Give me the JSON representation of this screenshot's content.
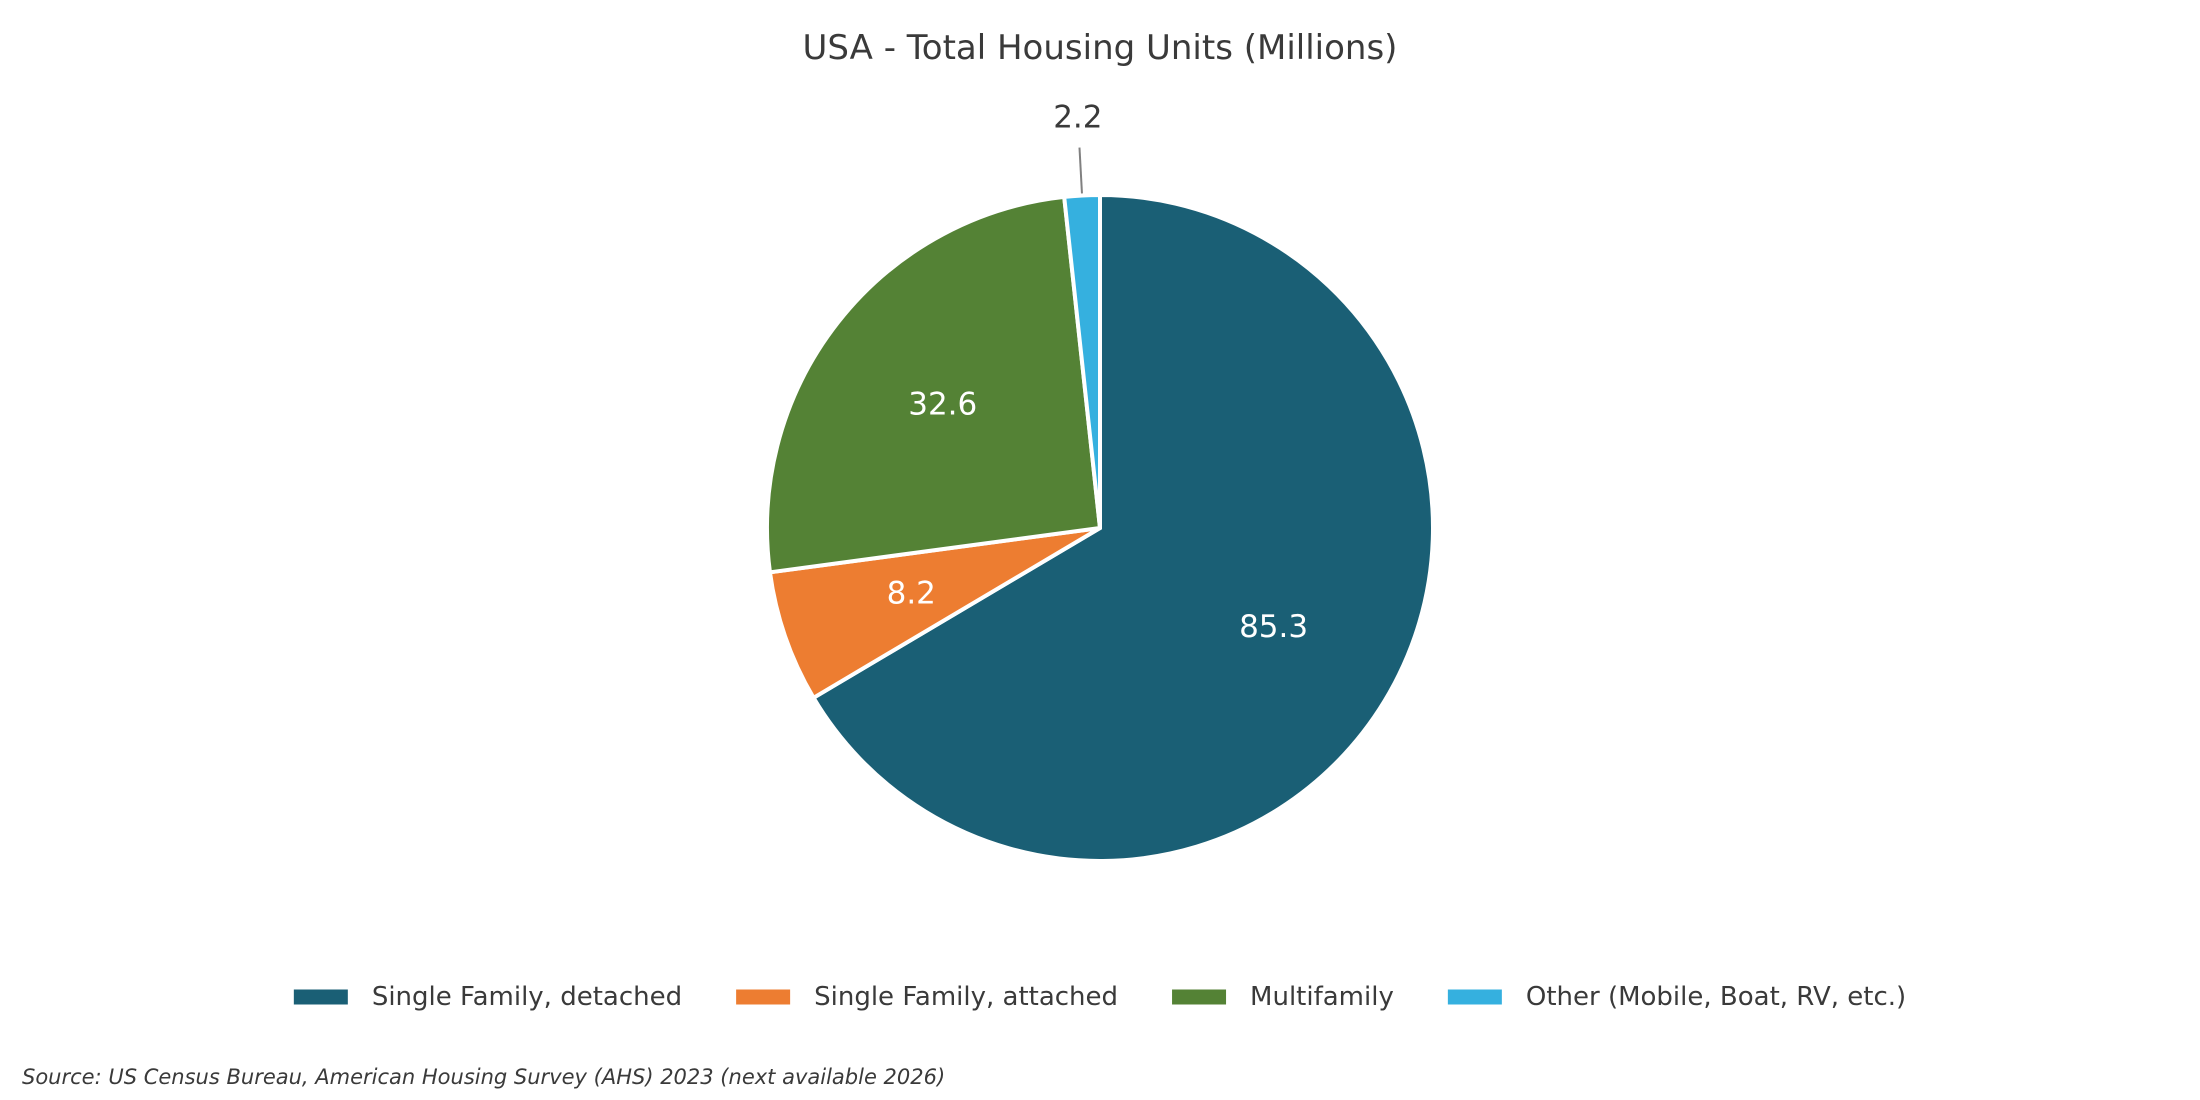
{
  "chart_data": {
    "type": "pie",
    "title": "USA - Total Housing Units (Millions)",
    "categories": [
      "Single Family, detached",
      "Single Family, attached",
      "Multifamily",
      "Other (Mobile, Boat, RV, etc.)"
    ],
    "values": [
      85.3,
      8.2,
      32.6,
      2.2
    ],
    "value_labels": [
      "85.3",
      "8.2",
      "32.6",
      "2.2"
    ],
    "colors": [
      "#1a5f75",
      "#ed7d31",
      "#548235",
      "#35b0df"
    ],
    "start_angle": "12 o'clock",
    "direction": "clockwise",
    "legend_position": "bottom",
    "source": "Source: US Census Bureau, American Housing Survey (AHS) 2023 (next available 2026)"
  }
}
